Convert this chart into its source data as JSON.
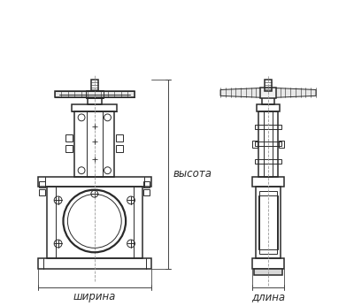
{
  "bg_color": "#ffffff",
  "line_color": "#2a2a2a",
  "dim_color": "#444444",
  "label_fontsize": 8.5,
  "label_shirna": "ширина",
  "label_vysota": "высота",
  "label_dlina": "длина",
  "fig_width": 4.0,
  "fig_height": 3.46
}
